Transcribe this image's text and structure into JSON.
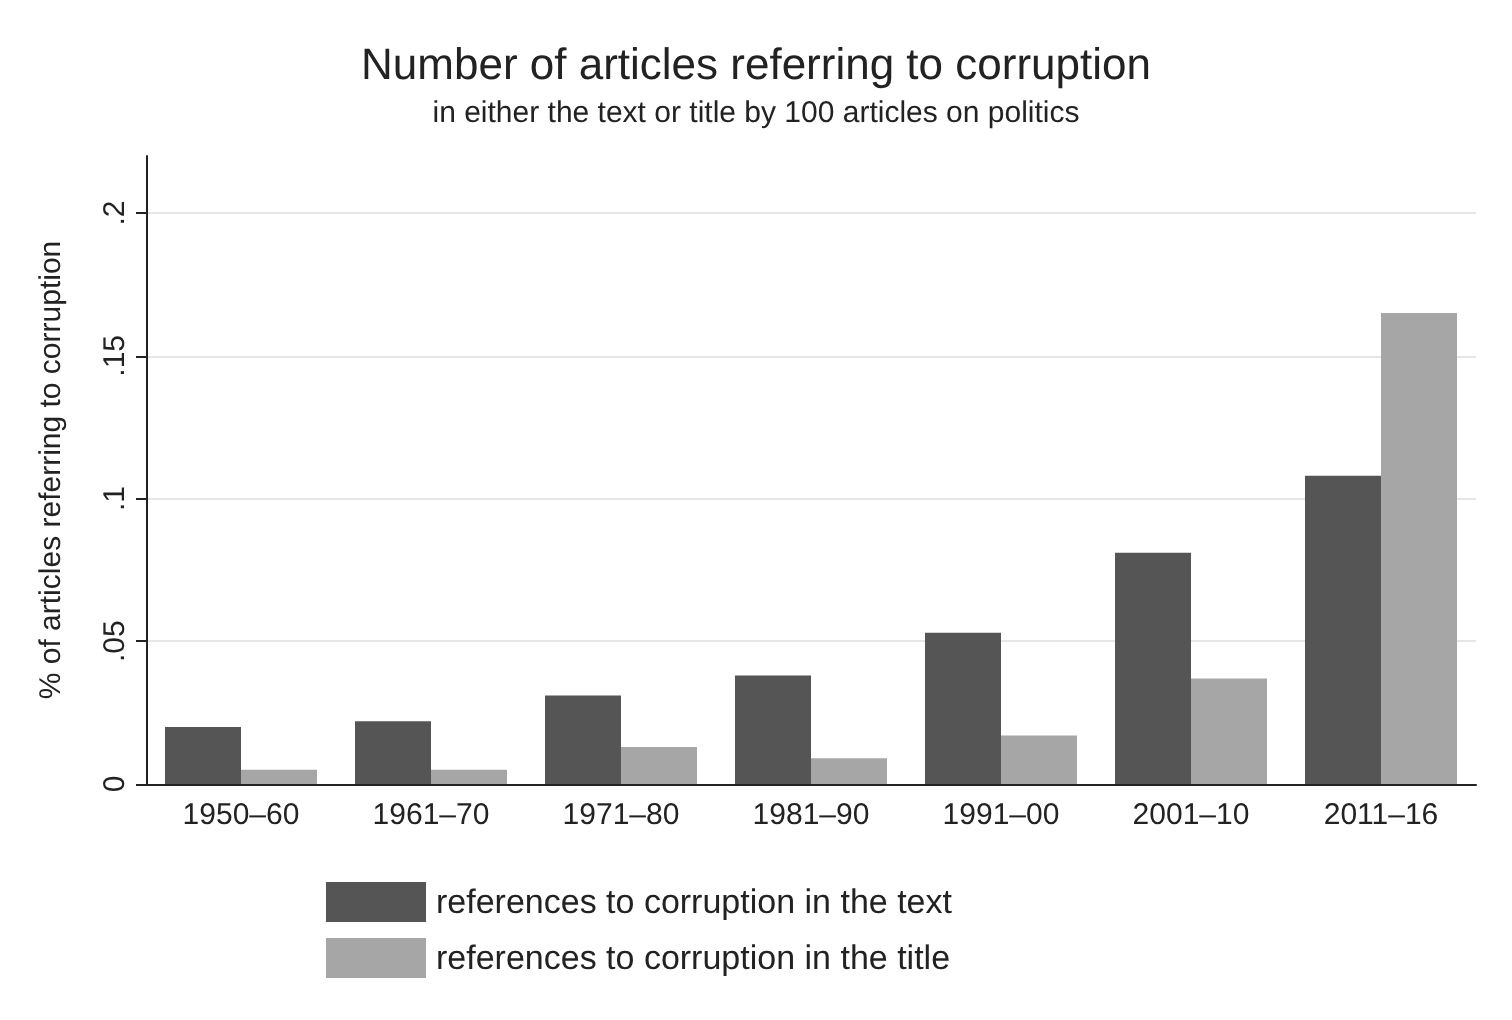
{
  "chart_data": {
    "type": "bar",
    "title": "Number of articles referring to corruption",
    "subtitle": "in either the text or title by 100 articles on politics",
    "ylabel": "% of articles referring to corruption",
    "categories": [
      "1950–60",
      "1961–70",
      "1971–80",
      "1981–90",
      "1991–00",
      "2001–10",
      "2011–16"
    ],
    "series": [
      {
        "name": "references to corruption in the text",
        "color": "#555555",
        "values": [
          0.02,
          0.022,
          0.031,
          0.038,
          0.053,
          0.081,
          0.108
        ]
      },
      {
        "name": "references to corruption in the title",
        "color": "#a6a6a6",
        "values": [
          0.005,
          0.005,
          0.013,
          0.009,
          0.017,
          0.037,
          0.165
        ]
      }
    ],
    "ylim": [
      0,
      0.22
    ],
    "yticks": [
      0,
      {
        "value": 0.05,
        "label": ".05"
      },
      {
        "value": 0.1,
        "label": ".1"
      },
      {
        "value": 0.15,
        "label": ".15"
      },
      {
        "value": 0.2,
        "label": ".2"
      }
    ],
    "grid": "y",
    "legend": "bottom"
  }
}
